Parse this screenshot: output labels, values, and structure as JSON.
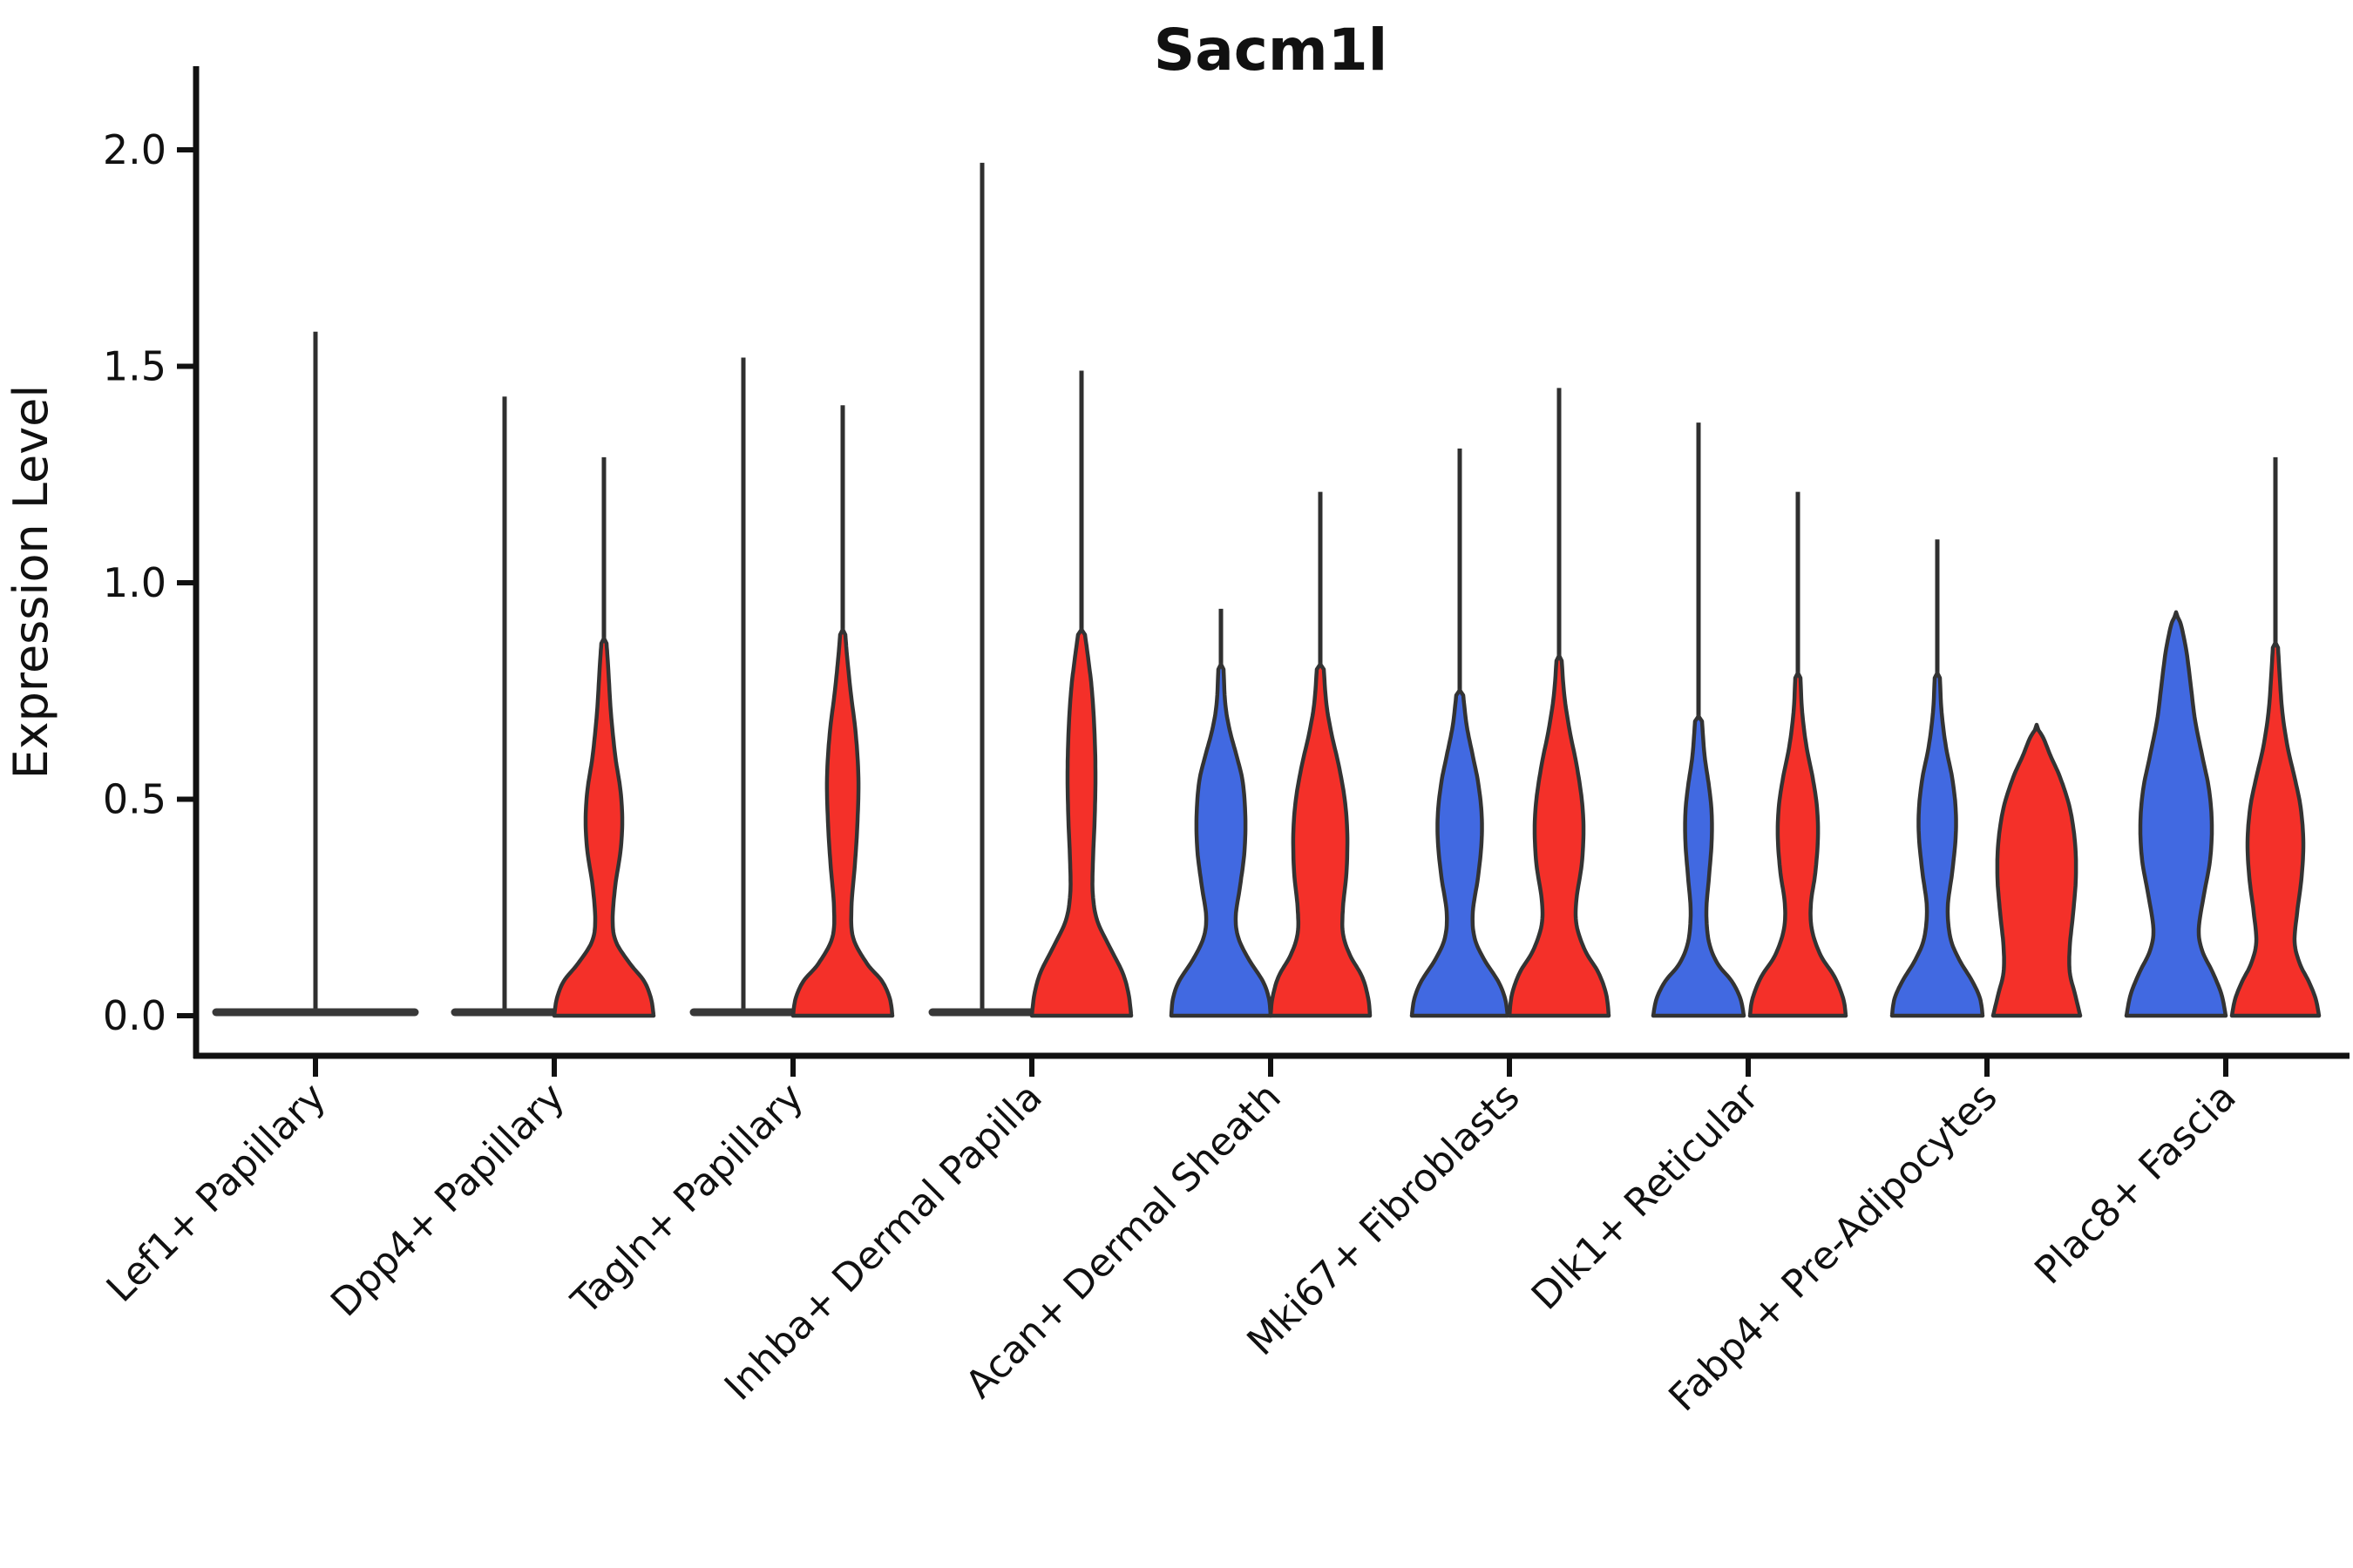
{
  "chart_data": {
    "type": "violin",
    "title": "Sacm1l",
    "ylabel": "Expression Level",
    "xlabel": "",
    "ylim": [
      0.0,
      2.0
    ],
    "yticks": [
      "0.0",
      "0.5",
      "1.0",
      "1.5",
      "2.0"
    ],
    "ytick_values": [
      0.0,
      0.5,
      1.0,
      1.5,
      2.0
    ],
    "grid": false,
    "legend": "none",
    "groups": [
      {
        "name": "blue",
        "color": "#4169e1"
      },
      {
        "name": "red",
        "color": "#f43029"
      }
    ],
    "stroke_color": "#333333",
    "axis_color": "#111111",
    "categories": [
      "Lef1+ Papillary",
      "Dpp4+ Papillary",
      "Tagln+ Papillary",
      "Inhba+ Dermal Papilla",
      "Acan+ Dermal Sheath",
      "Mki67+ Fibroblasts",
      "Dlk1+ Reticular",
      "Fabp4+ Pre-Adipocytes",
      "Plac8+ Fascia"
    ],
    "violins": [
      {
        "category": "Lef1+ Papillary",
        "items": [
          {
            "group": "merged",
            "pos": 0,
            "shape": "flat",
            "flat_halfwidth": 114,
            "max": 1.58,
            "spike": true,
            "color": "none"
          }
        ]
      },
      {
        "category": "Dpp4+ Papillary",
        "items": [
          {
            "group": "blue",
            "pos": -1,
            "shape": "flat",
            "flat_halfwidth": 57,
            "max": 1.43,
            "spike": true,
            "color": "#4169e1"
          },
          {
            "group": "red",
            "pos": 1,
            "shape": "curve",
            "max": 1.29,
            "spike": true,
            "color": "#f43029",
            "profile": [
              [
                0,
                57
              ],
              [
                0.04,
                54
              ],
              [
                0.08,
                46
              ],
              [
                0.12,
                30
              ],
              [
                0.17,
                14
              ],
              [
                0.22,
                10
              ],
              [
                0.3,
                13
              ],
              [
                0.38,
                19
              ],
              [
                0.45,
                21
              ],
              [
                0.52,
                19
              ],
              [
                0.6,
                13
              ],
              [
                0.7,
                8
              ],
              [
                0.8,
                5
              ],
              [
                0.86,
                3
              ]
            ]
          }
        ]
      },
      {
        "category": "Tagln+ Papillary",
        "items": [
          {
            "group": "blue",
            "pos": -1,
            "shape": "flat",
            "flat_halfwidth": 57,
            "max": 1.52,
            "spike": true,
            "color": "#4169e1"
          },
          {
            "group": "red",
            "pos": 1,
            "shape": "curve",
            "max": 1.41,
            "spike": true,
            "color": "#f43029",
            "profile": [
              [
                0,
                57
              ],
              [
                0.04,
                54
              ],
              [
                0.08,
                45
              ],
              [
                0.12,
                28
              ],
              [
                0.18,
                12
              ],
              [
                0.25,
                10
              ],
              [
                0.35,
                14
              ],
              [
                0.45,
                17
              ],
              [
                0.55,
                18
              ],
              [
                0.65,
                15
              ],
              [
                0.75,
                9
              ],
              [
                0.83,
                5
              ],
              [
                0.88,
                3
              ]
            ]
          }
        ]
      },
      {
        "category": "Inhba+ Dermal Papilla",
        "items": [
          {
            "group": "blue",
            "pos": -1,
            "shape": "flat",
            "flat_halfwidth": 57,
            "max": 1.97,
            "spike": true,
            "color": "#4169e1"
          },
          {
            "group": "red",
            "pos": 1,
            "shape": "curve",
            "max": 1.49,
            "spike": true,
            "color": "#f43029",
            "profile": [
              [
                0,
                57
              ],
              [
                0.05,
                54
              ],
              [
                0.1,
                47
              ],
              [
                0.16,
                32
              ],
              [
                0.22,
                18
              ],
              [
                0.28,
                13
              ],
              [
                0.35,
                13
              ],
              [
                0.45,
                15
              ],
              [
                0.55,
                16
              ],
              [
                0.65,
                15
              ],
              [
                0.75,
                12
              ],
              [
                0.82,
                8
              ],
              [
                0.88,
                4
              ]
            ]
          }
        ]
      },
      {
        "category": "Acan+ Dermal Sheath",
        "items": [
          {
            "group": "blue",
            "pos": -1,
            "shape": "curve",
            "max": 0.94,
            "spike": true,
            "color": "#4169e1",
            "profile": [
              [
                0,
                57
              ],
              [
                0.04,
                55
              ],
              [
                0.08,
                48
              ],
              [
                0.13,
                32
              ],
              [
                0.18,
                20
              ],
              [
                0.23,
                17
              ],
              [
                0.3,
                22
              ],
              [
                0.38,
                27
              ],
              [
                0.46,
                28
              ],
              [
                0.54,
                25
              ],
              [
                0.6,
                18
              ],
              [
                0.66,
                10
              ],
              [
                0.72,
                5
              ],
              [
                0.8,
                3
              ]
            ]
          },
          {
            "group": "red",
            "pos": 1,
            "shape": "curve",
            "max": 1.21,
            "spike": true,
            "color": "#f43029",
            "profile": [
              [
                0,
                57
              ],
              [
                0.04,
                55
              ],
              [
                0.09,
                48
              ],
              [
                0.14,
                34
              ],
              [
                0.19,
                26
              ],
              [
                0.25,
                26
              ],
              [
                0.33,
                30
              ],
              [
                0.42,
                31
              ],
              [
                0.5,
                28
              ],
              [
                0.58,
                21
              ],
              [
                0.65,
                13
              ],
              [
                0.72,
                7
              ],
              [
                0.8,
                4
              ]
            ]
          }
        ]
      },
      {
        "category": "Mki67+ Fibroblasts",
        "items": [
          {
            "group": "blue",
            "pos": -1,
            "shape": "curve",
            "max": 1.31,
            "spike": true,
            "color": "#4169e1",
            "profile": [
              [
                0,
                55
              ],
              [
                0.04,
                52
              ],
              [
                0.08,
                44
              ],
              [
                0.13,
                28
              ],
              [
                0.18,
                17
              ],
              [
                0.24,
                15
              ],
              [
                0.32,
                21
              ],
              [
                0.4,
                25
              ],
              [
                0.47,
                25
              ],
              [
                0.54,
                21
              ],
              [
                0.6,
                15
              ],
              [
                0.67,
                8
              ],
              [
                0.74,
                4
              ]
            ]
          },
          {
            "group": "red",
            "pos": 1,
            "shape": "curve",
            "max": 1.45,
            "spike": true,
            "color": "#f43029",
            "profile": [
              [
                0,
                57
              ],
              [
                0.05,
                54
              ],
              [
                0.1,
                45
              ],
              [
                0.15,
                30
              ],
              [
                0.21,
                20
              ],
              [
                0.27,
                20
              ],
              [
                0.35,
                26
              ],
              [
                0.43,
                28
              ],
              [
                0.5,
                26
              ],
              [
                0.58,
                20
              ],
              [
                0.66,
                12
              ],
              [
                0.74,
                6
              ],
              [
                0.82,
                3
              ]
            ]
          }
        ]
      },
      {
        "category": "Dlk1+ Reticular",
        "items": [
          {
            "group": "blue",
            "pos": -1,
            "shape": "curve",
            "max": 1.37,
            "spike": true,
            "color": "#4169e1",
            "profile": [
              [
                0,
                52
              ],
              [
                0.04,
                48
              ],
              [
                0.08,
                38
              ],
              [
                0.12,
                22
              ],
              [
                0.17,
                12
              ],
              [
                0.24,
                9
              ],
              [
                0.32,
                12
              ],
              [
                0.4,
                15
              ],
              [
                0.47,
                15
              ],
              [
                0.53,
                12
              ],
              [
                0.6,
                7
              ],
              [
                0.68,
                4
              ]
            ]
          },
          {
            "group": "red",
            "pos": 1,
            "shape": "curve",
            "max": 1.21,
            "spike": true,
            "color": "#f43029",
            "profile": [
              [
                0,
                55
              ],
              [
                0.04,
                52
              ],
              [
                0.09,
                42
              ],
              [
                0.14,
                26
              ],
              [
                0.2,
                16
              ],
              [
                0.26,
                15
              ],
              [
                0.33,
                20
              ],
              [
                0.41,
                23
              ],
              [
                0.48,
                22
              ],
              [
                0.55,
                17
              ],
              [
                0.62,
                10
              ],
              [
                0.7,
                5
              ],
              [
                0.78,
                3
              ]
            ]
          }
        ]
      },
      {
        "category": "Fabp4+ Pre-Adipocytes",
        "items": [
          {
            "group": "blue",
            "pos": -1,
            "shape": "curve",
            "max": 1.1,
            "spike": true,
            "color": "#4169e1",
            "profile": [
              [
                0,
                52
              ],
              [
                0.04,
                49
              ],
              [
                0.08,
                40
              ],
              [
                0.13,
                25
              ],
              [
                0.18,
                15
              ],
              [
                0.25,
                12
              ],
              [
                0.33,
                17
              ],
              [
                0.41,
                21
              ],
              [
                0.48,
                21
              ],
              [
                0.55,
                17
              ],
              [
                0.62,
                10
              ],
              [
                0.7,
                5
              ],
              [
                0.78,
                3
              ]
            ]
          },
          {
            "group": "red",
            "pos": 1,
            "shape": "curve",
            "max": 0.66,
            "spike": false,
            "color": "#f43029",
            "profile": [
              [
                0,
                50
              ],
              [
                0.05,
                44
              ],
              [
                0.1,
                38
              ],
              [
                0.16,
                38
              ],
              [
                0.24,
                42
              ],
              [
                0.32,
                45
              ],
              [
                0.4,
                44
              ],
              [
                0.48,
                38
              ],
              [
                0.55,
                27
              ],
              [
                0.6,
                16
              ],
              [
                0.64,
                8
              ],
              [
                0.66,
                2
              ]
            ]
          }
        ]
      },
      {
        "category": "Plac8+ Fascia",
        "items": [
          {
            "group": "blue",
            "pos": -1,
            "shape": "curve",
            "max": 0.92,
            "spike": false,
            "color": "#4169e1",
            "profile": [
              [
                0,
                57
              ],
              [
                0.05,
                52
              ],
              [
                0.1,
                42
              ],
              [
                0.15,
                30
              ],
              [
                0.2,
                26
              ],
              [
                0.28,
                32
              ],
              [
                0.36,
                39
              ],
              [
                0.44,
                41
              ],
              [
                0.52,
                38
              ],
              [
                0.6,
                30
              ],
              [
                0.68,
                22
              ],
              [
                0.76,
                17
              ],
              [
                0.84,
                12
              ],
              [
                0.9,
                6
              ],
              [
                0.92,
                2
              ]
            ]
          },
          {
            "group": "red",
            "pos": 1,
            "shape": "curve",
            "max": 1.29,
            "spike": true,
            "color": "#f43029",
            "profile": [
              [
                0,
                50
              ],
              [
                0.04,
                46
              ],
              [
                0.08,
                38
              ],
              [
                0.12,
                28
              ],
              [
                0.17,
                22
              ],
              [
                0.24,
                25
              ],
              [
                0.32,
                30
              ],
              [
                0.4,
                32
              ],
              [
                0.48,
                29
              ],
              [
                0.55,
                22
              ],
              [
                0.62,
                14
              ],
              [
                0.7,
                8
              ],
              [
                0.78,
                5
              ],
              [
                0.85,
                3
              ]
            ]
          }
        ]
      }
    ]
  }
}
